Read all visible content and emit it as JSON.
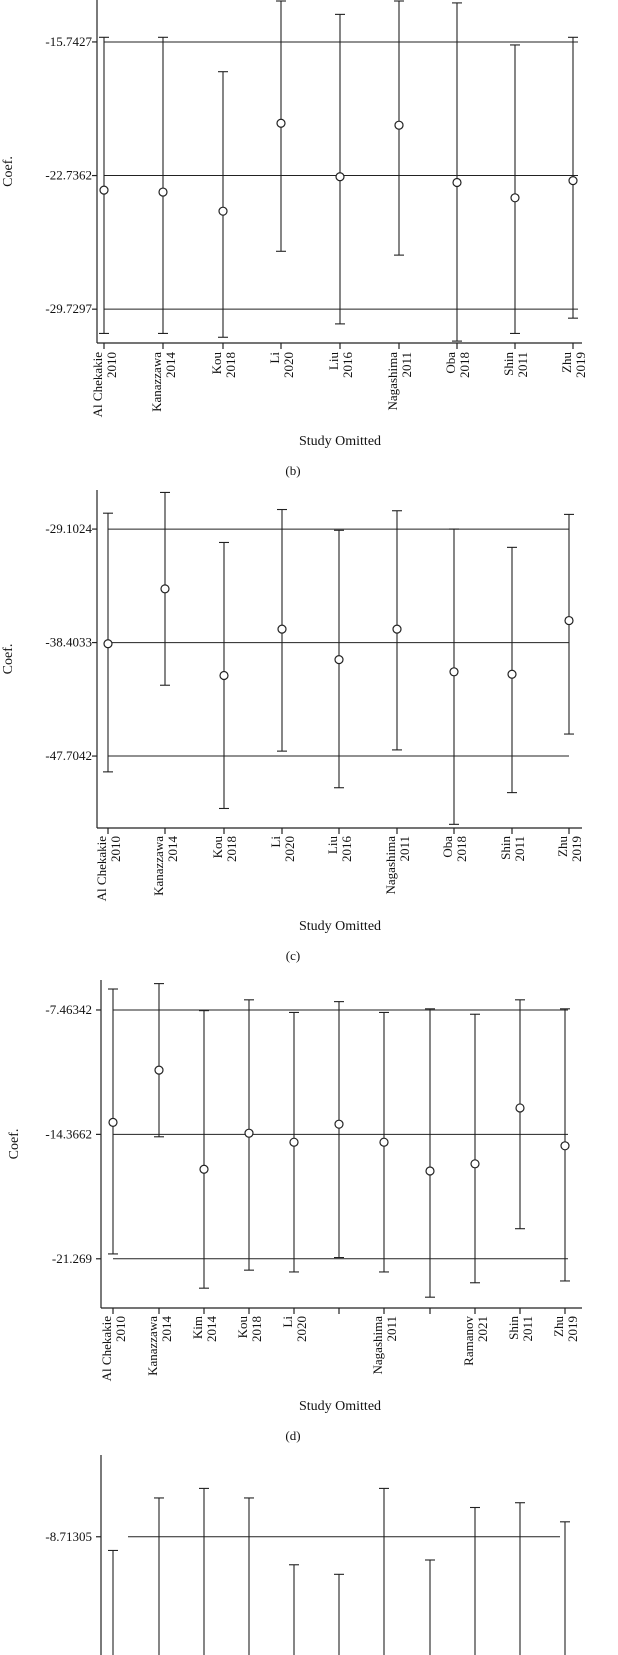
{
  "panels": [
    {
      "caption": "(b)",
      "xlabel": "Study Omitted",
      "ylabel": "Coef.",
      "ref_lines": [
        -15.7427,
        -22.7362,
        -29.7297
      ],
      "ref_labels": [
        "-15.7427",
        "-22.7362",
        "-29.7297"
      ]
    },
    {
      "caption": "(c)",
      "xlabel": "Study Omitted",
      "ylabel": "Coef.",
      "ref_lines": [
        -29.1024,
        -38.4033,
        -47.7042
      ],
      "ref_labels": [
        "-29.1024",
        "-38.4033",
        "-47.7042"
      ]
    },
    {
      "caption": "(d)",
      "xlabel": "Study Omitted",
      "ylabel": "Coef.",
      "ref_lines": [
        -7.46342,
        -14.3662,
        -21.269
      ],
      "ref_labels": [
        "-7.46342",
        "-14.3662",
        "-21.269"
      ]
    },
    {
      "caption": "",
      "xlabel": "",
      "ylabel": "",
      "ref_lines": [
        -8.71305
      ],
      "ref_labels": [
        "-8.71305"
      ]
    }
  ],
  "chart_data": [
    {
      "type": "scatter",
      "title": "",
      "xlabel": "Study Omitted",
      "ylabel": "Coef.",
      "ylim": [
        -31.5,
        -13.6
      ],
      "categories": [
        [
          "Al Chekakie",
          "2010"
        ],
        [
          "Kanazzawa",
          "2014"
        ],
        [
          "Kou",
          "2018"
        ],
        [
          "Li",
          "2020"
        ],
        [
          "Liu",
          "2016"
        ],
        [
          "Nagashima",
          "2011"
        ],
        [
          "Oba",
          "2018"
        ],
        [
          "Shin",
          "2011"
        ],
        [
          "Zhu",
          "2019"
        ]
      ],
      "values": [
        -23.5,
        -23.6,
        -24.6,
        -20.0,
        -22.8,
        -20.1,
        -23.1,
        -23.9,
        -23.0
      ],
      "lower": [
        -31.0,
        -31.0,
        -31.2,
        -26.7,
        -30.5,
        -26.9,
        -31.4,
        -31.0,
        -30.2
      ],
      "upper": [
        -15.5,
        -15.5,
        -17.3,
        -13.6,
        -14.3,
        -13.6,
        -13.7,
        -15.9,
        -15.5
      ],
      "reference_lines": [
        -15.7427,
        -22.7362,
        -29.7297
      ],
      "grid": false
    },
    {
      "type": "scatter",
      "title": "",
      "xlabel": "Study Omitted",
      "ylabel": "Coef.",
      "ylim": [
        -53.6,
        -25.9
      ],
      "categories": [
        [
          "Al Chekakie",
          "2010"
        ],
        [
          "Kanazzawa",
          "2014"
        ],
        [
          "Kou",
          "2018"
        ],
        [
          "Li",
          "2020"
        ],
        [
          "Liu",
          "2016"
        ],
        [
          "Nagashima",
          "2011"
        ],
        [
          "Oba",
          "2018"
        ],
        [
          "Shin",
          "2011"
        ],
        [
          "Zhu",
          "2019"
        ]
      ],
      "values": [
        -38.5,
        -34.0,
        -41.1,
        -37.3,
        -39.8,
        -37.3,
        -40.8,
        -41.0,
        -36.6
      ],
      "lower": [
        -49.0,
        -41.9,
        -52.0,
        -47.3,
        -50.3,
        -47.2,
        -53.3,
        -50.7,
        -45.9
      ],
      "upper": [
        -27.8,
        -26.1,
        -30.2,
        -27.5,
        -29.2,
        -27.6,
        -29.1,
        -30.6,
        -27.9
      ],
      "reference_lines": [
        -29.1024,
        -38.4033,
        -47.7042
      ],
      "grid": false
    },
    {
      "type": "scatter",
      "title": "",
      "xlabel": "Study Omitted",
      "ylabel": "Coef.",
      "ylim": [
        -24.0,
        -5.8
      ],
      "categories": [
        [
          "Al Chekakie",
          "2010"
        ],
        [
          "Kanazzawa",
          "2014"
        ],
        [
          "Kim",
          "2014"
        ],
        [
          "Kou",
          "2018"
        ],
        [
          "Li",
          "2020"
        ],
        [
          "",
          ""
        ],
        [
          "Nagashima",
          "2011"
        ],
        [
          "",
          ""
        ],
        [
          "Ramanov",
          "2021"
        ],
        [
          "Shin",
          "2011"
        ],
        [
          "Zhu",
          "2019"
        ]
      ],
      "values": [
        -13.7,
        -10.8,
        -16.3,
        -14.3,
        -14.8,
        -13.8,
        -14.8,
        -16.4,
        -16.0,
        -12.9,
        -15.0
      ],
      "lower": [
        -21.0,
        -14.5,
        -22.9,
        -21.9,
        -22.0,
        -21.2,
        -22.0,
        -23.4,
        -22.6,
        -19.6,
        -22.5
      ],
      "upper": [
        -6.3,
        -6.0,
        -7.5,
        -6.9,
        -7.6,
        -7.0,
        -7.6,
        -7.4,
        -7.7,
        -6.9,
        -7.4
      ],
      "reference_lines": [
        -7.46342,
        -14.3662,
        -21.269
      ],
      "grid": false
    },
    {
      "type": "scatter",
      "title": "",
      "xlabel": "",
      "ylabel": "",
      "ylim": [
        -11.4,
        -7.0
      ],
      "categories": [
        [
          "",
          ""
        ],
        [
          "",
          ""
        ],
        [
          "",
          ""
        ],
        [
          "",
          ""
        ],
        [
          "",
          ""
        ],
        [
          "",
          ""
        ],
        [
          "",
          ""
        ],
        [
          "",
          ""
        ],
        [
          "",
          ""
        ],
        [
          "",
          ""
        ],
        [
          "",
          ""
        ]
      ],
      "values": [],
      "lower": [],
      "upper": [
        -9.0,
        -7.9,
        -7.7,
        -7.9,
        -9.3,
        -9.5,
        -7.7,
        -9.2,
        -8.1,
        -8.0,
        -8.4
      ],
      "reference_lines": [
        -8.71305
      ],
      "grid": false
    }
  ]
}
